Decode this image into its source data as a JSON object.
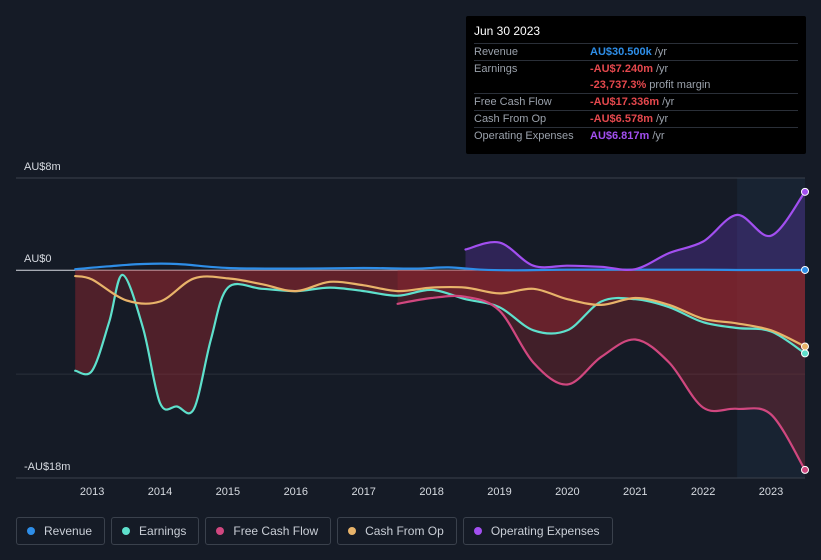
{
  "tooltip": {
    "date": "Jun 30 2023",
    "rows": [
      {
        "label": "Revenue",
        "value": "AU$30.500k",
        "unit": "/yr",
        "color": "#2e8ee8"
      },
      {
        "label": "Earnings",
        "value": "-AU$7.240m",
        "unit": "/yr",
        "color": "#e5484d"
      },
      {
        "label": "",
        "value": "-23,737.3%",
        "unit": "profit margin",
        "color": "#e5484d"
      },
      {
        "label": "Free Cash Flow",
        "value": "-AU$17.336m",
        "unit": "/yr",
        "color": "#e5484d"
      },
      {
        "label": "Cash From Op",
        "value": "-AU$6.578m",
        "unit": "/yr",
        "color": "#e5484d"
      },
      {
        "label": "Operating Expenses",
        "value": "AU$6.817m",
        "unit": "/yr",
        "color": "#a24ff0"
      }
    ]
  },
  "legend": [
    {
      "label": "Revenue",
      "color": "#2e8ee8"
    },
    {
      "label": "Earnings",
      "color": "#5ee0cc"
    },
    {
      "label": "Free Cash Flow",
      "color": "#d0477f"
    },
    {
      "label": "Cash From Op",
      "color": "#e8b36a"
    },
    {
      "label": "Operating Expenses",
      "color": "#a24ff0"
    }
  ],
  "chart_data": {
    "type": "line",
    "y_axis_labels": {
      "top": "AU$8m",
      "zero": "AU$0",
      "bottom": "-AU$18m"
    },
    "ylim": [
      -18,
      8
    ],
    "xlim": [
      2012.35,
      2023.5
    ],
    "x_ticks": [
      "2013",
      "2014",
      "2015",
      "2016",
      "2017",
      "2018",
      "2019",
      "2020",
      "2021",
      "2022",
      "2023"
    ],
    "x_tick_values": [
      2013,
      2014,
      2015,
      2016,
      2017,
      2018,
      2019,
      2020,
      2021,
      2022,
      2023
    ],
    "highlight_start": 2022.5,
    "series": [
      {
        "name": "Revenue",
        "color": "#2e8ee8",
        "fill": false,
        "x": [
          2012.75,
          2013.25,
          2013.75,
          2014.25,
          2015,
          2016,
          2017,
          2017.75,
          2018.25,
          2018.75,
          2019.25,
          2020,
          2021,
          2022,
          2022.5,
          2023,
          2023.5
        ],
        "y": [
          0.1,
          0.35,
          0.55,
          0.55,
          0.2,
          0.15,
          0.2,
          0.15,
          0.25,
          0.05,
          0.0,
          0.05,
          0.05,
          0.05,
          0.03,
          0.03,
          0.03
        ]
      },
      {
        "name": "Earnings",
        "color": "#5ee0cc",
        "fill": true,
        "x": [
          2012.75,
          2013.0,
          2013.25,
          2013.45,
          2013.75,
          2014.0,
          2014.25,
          2014.5,
          2014.75,
          2015.0,
          2015.5,
          2016.0,
          2016.5,
          2017.0,
          2017.5,
          2018.0,
          2018.5,
          2019.0,
          2019.5,
          2020.0,
          2020.5,
          2021.0,
          2021.5,
          2022.0,
          2022.5,
          2023.0,
          2023.5
        ],
        "y": [
          -8.7,
          -8.7,
          -4.5,
          -0.4,
          -5.0,
          -11.5,
          -11.8,
          -12.0,
          -6.0,
          -1.5,
          -1.6,
          -1.8,
          -1.5,
          -1.8,
          -2.2,
          -1.7,
          -2.5,
          -3.2,
          -5.2,
          -5.2,
          -2.7,
          -2.5,
          -3.2,
          -4.5,
          -5.0,
          -5.3,
          -7.2
        ]
      },
      {
        "name": "Free Cash Flow",
        "color": "#d0477f",
        "fill": true,
        "x": [
          2017.5,
          2018.0,
          2018.5,
          2019.0,
          2019.5,
          2020.0,
          2020.5,
          2021.0,
          2021.5,
          2022.0,
          2022.5,
          2023.0,
          2023.5
        ],
        "y": [
          -2.9,
          -2.4,
          -2.3,
          -3.5,
          -8.0,
          -9.9,
          -7.5,
          -6.0,
          -8.0,
          -11.9,
          -12.0,
          -12.5,
          -17.3
        ]
      },
      {
        "name": "Cash From Op",
        "color": "#e8b36a",
        "fill": true,
        "x": [
          2012.75,
          2013.0,
          2013.5,
          2014.0,
          2014.5,
          2015.0,
          2015.5,
          2016.0,
          2016.5,
          2017.0,
          2017.5,
          2018.0,
          2018.5,
          2019.0,
          2019.5,
          2020.0,
          2020.5,
          2021.0,
          2021.5,
          2022.0,
          2022.5,
          2023.0,
          2023.5
        ],
        "y": [
          -0.5,
          -0.8,
          -2.6,
          -2.7,
          -0.7,
          -0.7,
          -1.2,
          -1.8,
          -1.0,
          -1.3,
          -1.8,
          -1.5,
          -1.5,
          -2.0,
          -1.6,
          -2.5,
          -3.0,
          -2.4,
          -3.0,
          -4.2,
          -4.6,
          -5.2,
          -6.6
        ]
      },
      {
        "name": "Operating Expenses",
        "color": "#a24ff0",
        "fill": true,
        "x": [
          2018.5,
          2019.0,
          2019.5,
          2020.0,
          2020.5,
          2021.0,
          2021.5,
          2022.0,
          2022.5,
          2023.0,
          2023.5
        ],
        "y": [
          1.8,
          2.4,
          0.4,
          0.4,
          0.3,
          0.1,
          1.5,
          2.5,
          4.8,
          3.0,
          6.8
        ]
      }
    ]
  }
}
